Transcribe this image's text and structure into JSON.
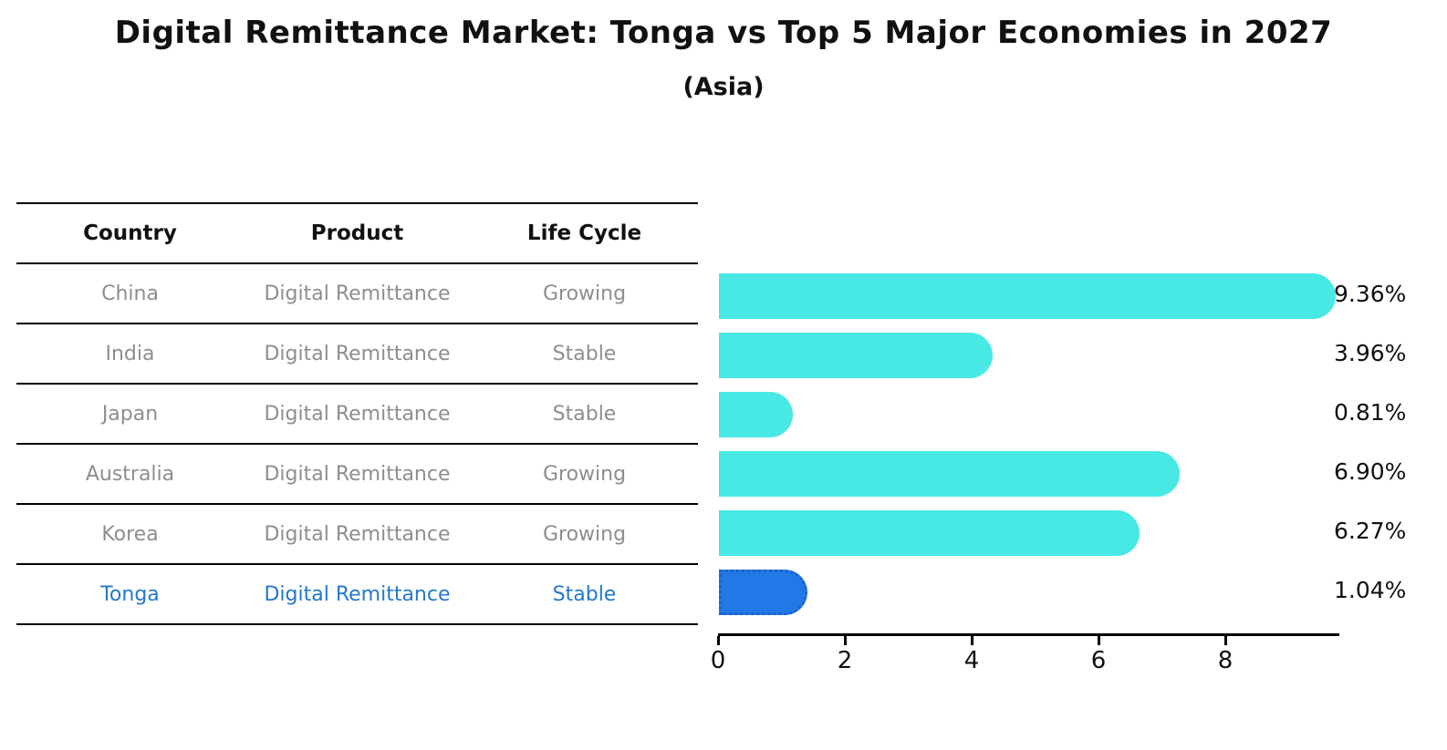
{
  "title": "Digital Remittance Market: Tonga vs Top 5 Major Economies in 2027",
  "subtitle": "(Asia)",
  "table": {
    "headers": [
      "Country",
      "Product",
      "Life Cycle"
    ],
    "rows": [
      {
        "country": "China",
        "product": "Digital Remittance",
        "life_cycle": "Growing",
        "highlight": false
      },
      {
        "country": "India",
        "product": "Digital Remittance",
        "life_cycle": "Stable",
        "highlight": false
      },
      {
        "country": "Japan",
        "product": "Digital Remittance",
        "life_cycle": "Stable",
        "highlight": false
      },
      {
        "country": "Australia",
        "product": "Digital Remittance",
        "life_cycle": "Growing",
        "highlight": false
      },
      {
        "country": "Korea",
        "product": "Digital Remittance",
        "life_cycle": "Growing",
        "highlight": false
      },
      {
        "country": "Tonga",
        "product": "Digital Remittance",
        "life_cycle": "Stable",
        "highlight": true
      }
    ]
  },
  "chart_data": {
    "type": "bar",
    "orientation": "horizontal",
    "title": "Digital Remittance Market: Tonga vs Top 5 Major Economies in 2027 (Asia)",
    "categories": [
      "China",
      "India",
      "Japan",
      "Australia",
      "Korea",
      "Tonga"
    ],
    "values": [
      9.36,
      3.96,
      0.81,
      6.9,
      6.27,
      1.04
    ],
    "value_labels": [
      "9.36%",
      "3.96%",
      "0.81%",
      "6.90%",
      "6.27%",
      "1.04%"
    ],
    "xlabel": "",
    "ylabel": "",
    "xlim": [
      0,
      9.8
    ],
    "x_ticks": [
      0,
      2,
      4,
      6,
      8
    ],
    "grid": false,
    "legend": false,
    "highlight_index": 5,
    "highlight_style": "dotted-border"
  },
  "colors": {
    "bar_cyan": "#48e8e4",
    "bar_blue": "#2178e6",
    "highlight_border": "#1b63cc",
    "highlight_text": "#2478cc",
    "muted_text": "#8e8e8e",
    "text": "#111111"
  }
}
